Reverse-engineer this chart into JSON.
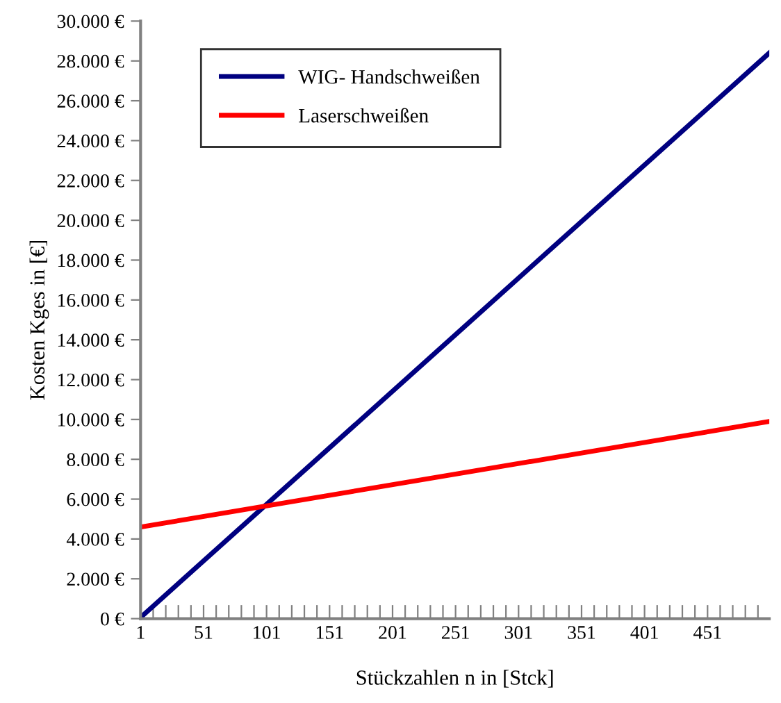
{
  "chart_data": {
    "type": "line",
    "xlabel": "Stückzahlen n in [Stck]",
    "ylabel": "Kosten Kges in [€]",
    "x": [
      1,
      500
    ],
    "series": [
      {
        "name": "WIG- Handschweißen",
        "color": "#000080",
        "values": [
          60,
          28400
        ]
      },
      {
        "name": "Laserschweißen",
        "color": "#ff0000",
        "values": [
          4600,
          9900
        ]
      }
    ],
    "xlim": [
      1,
      500
    ],
    "xticks": [
      1,
      {
        "value": 11,
        "label": null
      },
      {
        "value": 21,
        "label": null
      },
      {
        "value": 31,
        "label": null
      },
      {
        "value": 41,
        "label": null
      },
      51,
      {
        "value": 61,
        "label": null
      },
      {
        "value": 71,
        "label": null
      },
      {
        "value": 81,
        "label": null
      },
      {
        "value": 91,
        "label": null
      },
      101,
      {
        "value": 111,
        "label": null
      },
      {
        "value": 121,
        "label": null
      },
      {
        "value": 131,
        "label": null
      },
      {
        "value": 141,
        "label": null
      },
      151,
      {
        "value": 161,
        "label": null
      },
      {
        "value": 171,
        "label": null
      },
      {
        "value": 181,
        "label": null
      },
      {
        "value": 191,
        "label": null
      },
      201,
      {
        "value": 211,
        "label": null
      },
      {
        "value": 221,
        "label": null
      },
      {
        "value": 231,
        "label": null
      },
      {
        "value": 241,
        "label": null
      },
      251,
      {
        "value": 261,
        "label": null
      },
      {
        "value": 271,
        "label": null
      },
      {
        "value": 281,
        "label": null
      },
      {
        "value": 291,
        "label": null
      },
      301,
      {
        "value": 311,
        "label": null
      },
      {
        "value": 321,
        "label": null
      },
      {
        "value": 331,
        "label": null
      },
      {
        "value": 341,
        "label": null
      },
      351,
      {
        "value": 361,
        "label": null
      },
      {
        "value": 371,
        "label": null
      },
      {
        "value": 381,
        "label": null
      },
      {
        "value": 391,
        "label": null
      },
      401,
      {
        "value": 411,
        "label": null
      },
      {
        "value": 421,
        "label": null
      },
      {
        "value": 431,
        "label": null
      },
      {
        "value": 441,
        "label": null
      },
      451,
      {
        "value": 461,
        "label": null
      },
      {
        "value": 471,
        "label": null
      },
      {
        "value": 481,
        "label": null
      },
      {
        "value": 491,
        "label": null
      }
    ],
    "ylim": [
      0,
      30000
    ],
    "yticks": [
      {
        "value": 0,
        "label": "0 €"
      },
      {
        "value": 2000,
        "label": "2.000 €"
      },
      {
        "value": 4000,
        "label": "4.000 €"
      },
      {
        "value": 6000,
        "label": "6.000 €"
      },
      {
        "value": 8000,
        "label": "8.000 €"
      },
      {
        "value": 10000,
        "label": "10.000 €"
      },
      {
        "value": 12000,
        "label": "12.000 €"
      },
      {
        "value": 14000,
        "label": "14.000 €"
      },
      {
        "value": 16000,
        "label": "16.000 €"
      },
      {
        "value": 18000,
        "label": "18.000 €"
      },
      {
        "value": 20000,
        "label": "20.000 €"
      },
      {
        "value": 22000,
        "label": "22.000 €"
      },
      {
        "value": 24000,
        "label": "24.000 €"
      },
      {
        "value": 26000,
        "label": "26.000 €"
      },
      {
        "value": 28000,
        "label": "28.000 €"
      },
      {
        "value": 30000,
        "label": "30.000 €"
      }
    ],
    "grid": false,
    "legend": "top left",
    "marker": "none",
    "line_style": "solid"
  }
}
